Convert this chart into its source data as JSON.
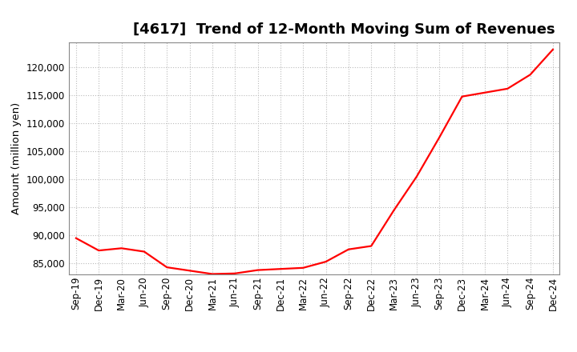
{
  "title": "[4617]  Trend of 12-Month Moving Sum of Revenues",
  "ylabel": "Amount (million yen)",
  "line_color": "#ff0000",
  "background_color": "#ffffff",
  "plot_bg_color": "#ffffff",
  "grid_color": "#bbbbbb",
  "x_labels": [
    "Sep-19",
    "Dec-19",
    "Mar-20",
    "Jun-20",
    "Sep-20",
    "Dec-20",
    "Mar-21",
    "Jun-21",
    "Sep-21",
    "Dec-21",
    "Mar-22",
    "Jun-22",
    "Sep-22",
    "Dec-22",
    "Mar-23",
    "Jun-23",
    "Sep-23",
    "Dec-23",
    "Mar-24",
    "Jun-24",
    "Sep-24",
    "Dec-24"
  ],
  "values": [
    89500,
    87300,
    87700,
    87100,
    84300,
    83700,
    83100,
    83200,
    83800,
    84000,
    84200,
    85300,
    87500,
    88100,
    94500,
    100500,
    107500,
    114800,
    115500,
    116200,
    118700,
    123200
  ],
  "ylim_min": 83000,
  "ylim_max": 124500,
  "yticks": [
    85000,
    90000,
    95000,
    100000,
    105000,
    110000,
    115000,
    120000
  ],
  "title_fontsize": 13,
  "tick_fontsize": 8.5,
  "ylabel_fontsize": 9.5,
  "line_width": 1.6
}
